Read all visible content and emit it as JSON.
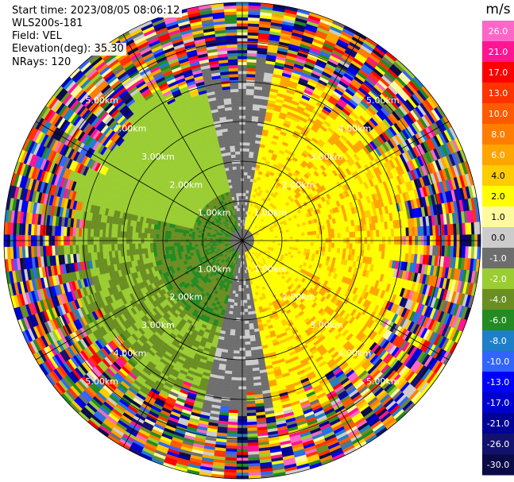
{
  "header": {
    "start_time": "Start time: 2023/08/05 08:06:12",
    "instrument": "WLS200s-181",
    "field": "Field: VEL",
    "elevation": "Elevation(deg): 35.30",
    "nrays": "NRays: 120"
  },
  "chart_data": {
    "type": "heatmap",
    "projection": "polar-ppi",
    "field": "VEL",
    "units": "m/s",
    "nrays": 120,
    "elevation_deg": 35.3,
    "rmax_km": 6.0,
    "range_rings_km": [
      1,
      2,
      3,
      4,
      5,
      6
    ],
    "ring_labels": [
      "1.00km",
      "2.00km",
      "3.00km",
      "4.00km",
      "5.00km"
    ],
    "spoke_angles_deg": [
      0,
      30,
      60,
      90,
      120,
      150,
      180,
      210,
      240,
      270,
      300,
      330
    ],
    "colorbar": {
      "title": "m/s",
      "ticks": [
        "26.0",
        "21.0",
        "17.0",
        "13.0",
        "10.0",
        "8.0",
        "6.0",
        "4.0",
        "2.0",
        "1.0",
        "0.0",
        "-1.0",
        "-2.0",
        "-4.0",
        "-6.0",
        "-8.0",
        "-10.0",
        "-13.0",
        "-17.0",
        "-21.0",
        "-26.0",
        "-30.0"
      ],
      "colors": [
        "#ff66c8",
        "#ff1493",
        "#ff0000",
        "#ff3300",
        "#ff5a00",
        "#ff7e00",
        "#ffa500",
        "#ffcc00",
        "#ffff00",
        "#fffaa0",
        "#cccccc",
        "#6e6e6e",
        "#9acd32",
        "#6b8e23",
        "#228b22",
        "#1e7fc8",
        "#3264ff",
        "#0000ff",
        "#0000cd",
        "#000096",
        "#12126e",
        "#0a0a46"
      ]
    },
    "velocity_pattern": {
      "positive_sector": "east",
      "negative_sector": "west",
      "noisy_beyond_km": 4.2
    }
  }
}
